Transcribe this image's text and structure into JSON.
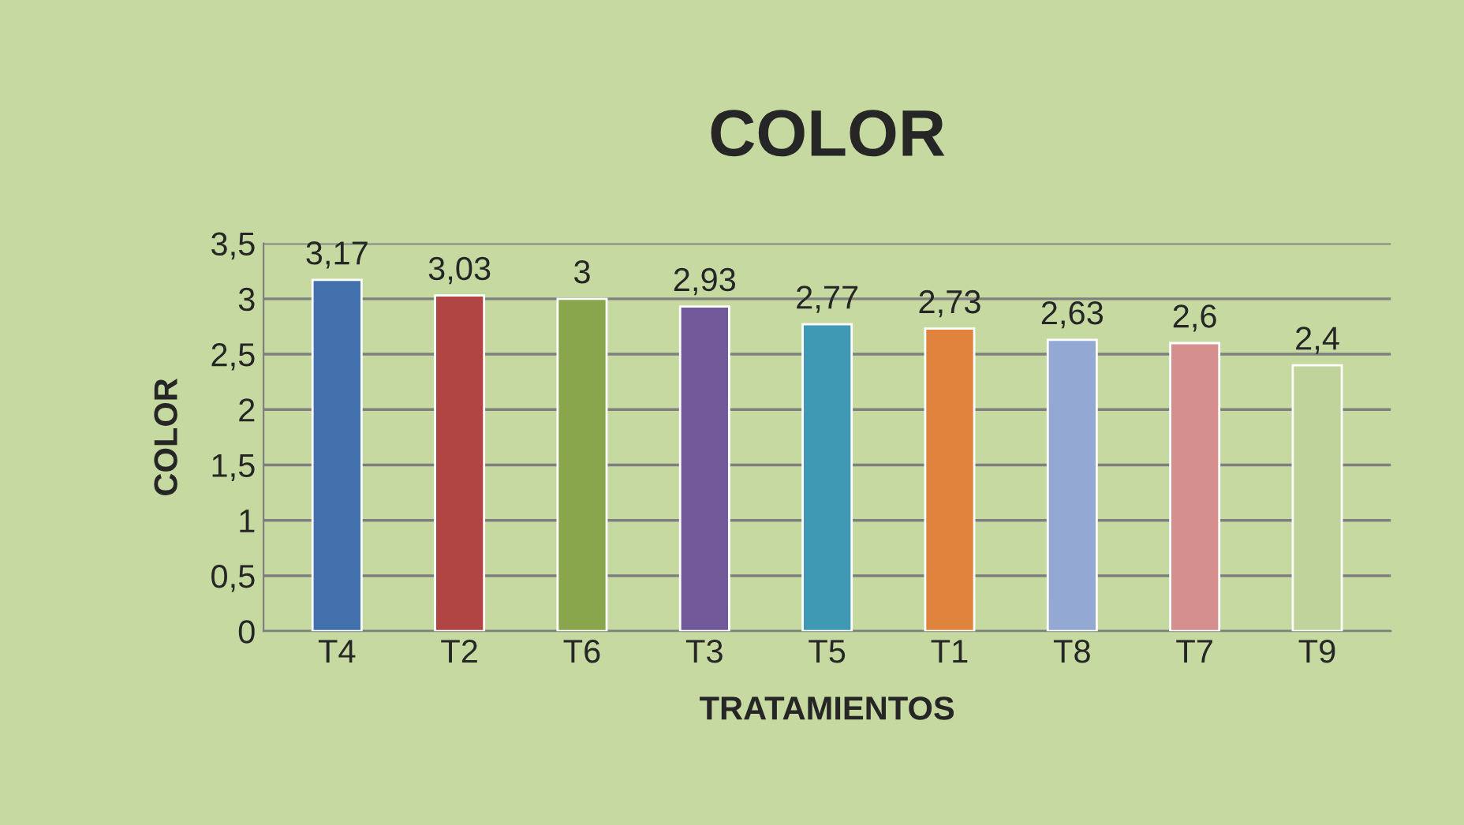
{
  "chart_data": {
    "type": "bar",
    "title": "COLOR",
    "xlabel": "TRATAMIENTOS",
    "ylabel": "COLOR",
    "categories": [
      "T4",
      "T2",
      "T6",
      "T3",
      "T5",
      "T1",
      "T8",
      "T7",
      "T9"
    ],
    "values": [
      3.17,
      3.03,
      3,
      2.93,
      2.77,
      2.73,
      2.63,
      2.6,
      2.4
    ],
    "value_labels": [
      "3,17",
      "3,03",
      "3",
      "2,93",
      "2,77",
      "2,73",
      "2,63",
      "2,6",
      "2,4"
    ],
    "colors": [
      "#4170ad",
      "#b04543",
      "#89a64c",
      "#72599a",
      "#3f98b4",
      "#e0843d",
      "#93a8d3",
      "#d58f8f",
      "#bfd39a"
    ],
    "ylim": [
      0,
      3.5
    ],
    "yticks": [
      0,
      {
        "value": 0.5,
        "label": "0,5"
      },
      1,
      {
        "value": 1.5,
        "label": "1,5"
      },
      2,
      {
        "value": 2.5,
        "label": "2,5"
      },
      3,
      {
        "value": 3.5,
        "label": "3,5"
      }
    ],
    "grid": "y",
    "legend": false
  }
}
